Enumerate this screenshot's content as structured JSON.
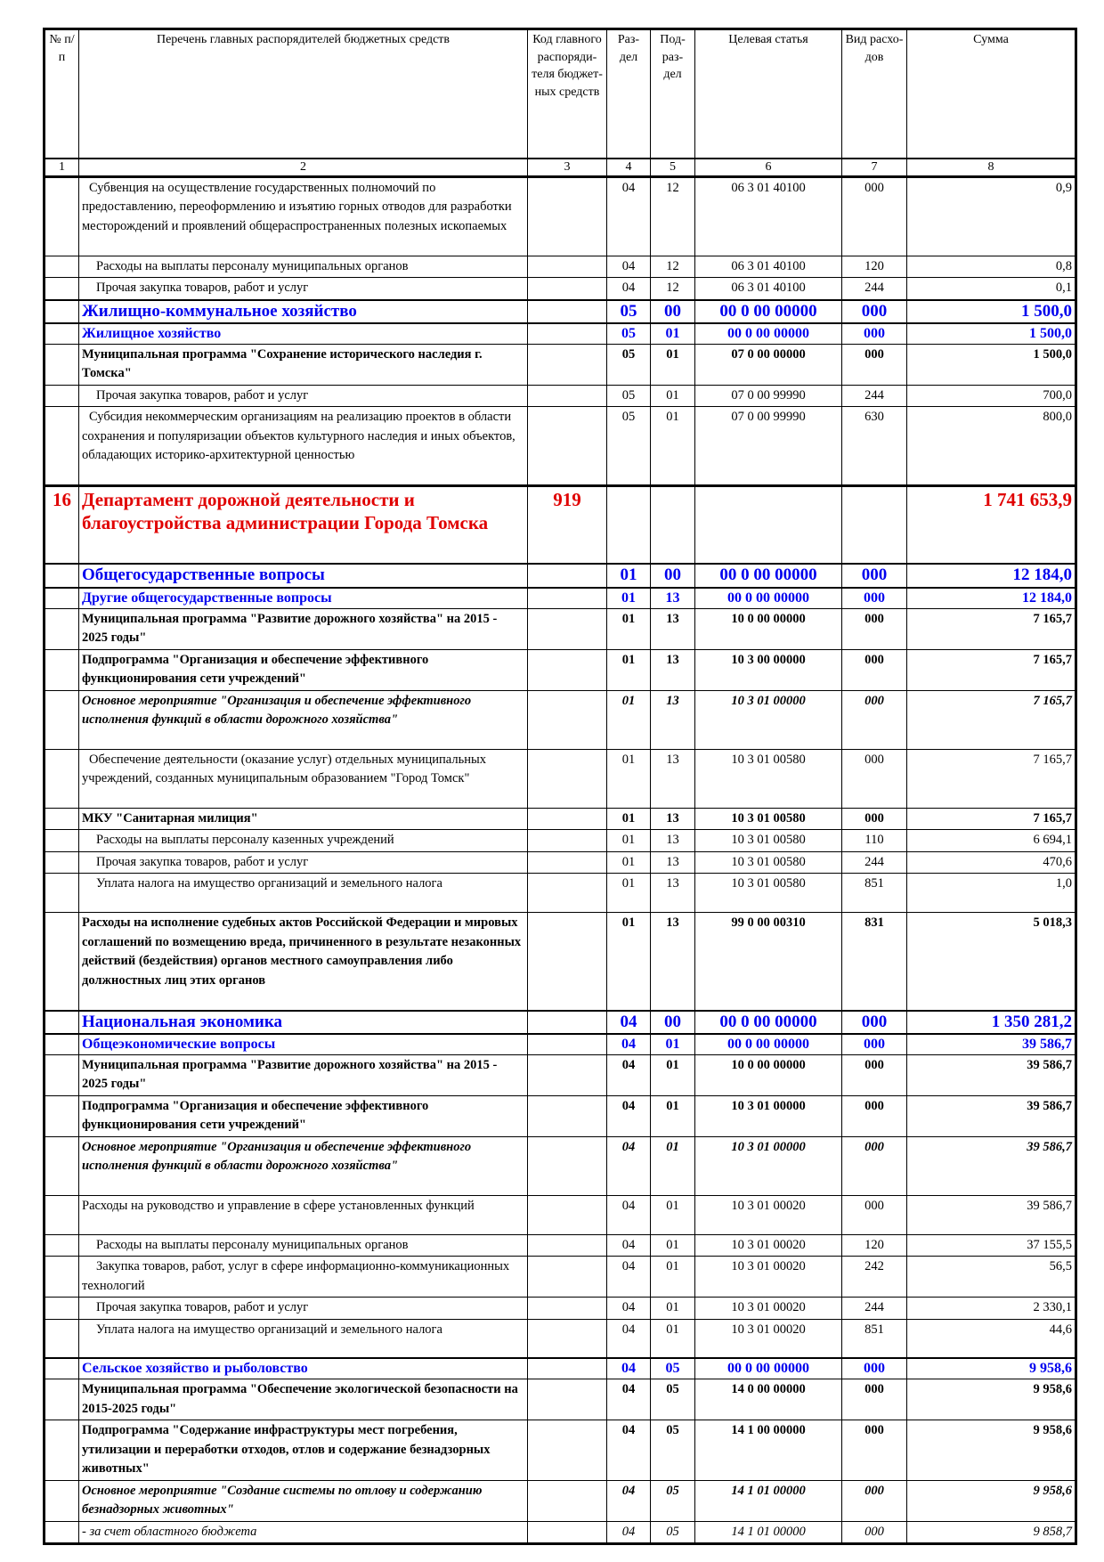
{
  "header": {
    "cols": [
      "№ п/п",
      "Перечень главных распорядителей бюджетных средств",
      "Код главного распоряди-теля бюджет-ных средств",
      "Раз-дел",
      "Под-раз-дел",
      "Целевая статья",
      "Вид расхо-дов",
      "Сумма"
    ],
    "nums": [
      "1",
      "2",
      "3",
      "4",
      "5",
      "6",
      "7",
      "8"
    ]
  },
  "colors": {
    "section": "#0000ee",
    "department": "#e00000",
    "text": "#000000"
  },
  "rows": [
    {
      "style": "normal",
      "h": 89,
      "no": "",
      "name": "Субвенция на осуществление государственных полномочий по предоставлению, переоформлению и изъятию горных отводов для разработки месторождений и проявлений общераспространенных полезных ископаемых",
      "code": "",
      "razdel": "04",
      "podrazdel": "12",
      "statya": "06 3 01 40100",
      "vid": "000",
      "summa": "0,9"
    },
    {
      "style": "sub",
      "h": 21,
      "no": "",
      "name": "Расходы на выплаты персоналу муниципальных органов",
      "code": "",
      "razdel": "04",
      "podrazdel": "12",
      "statya": "06 3 01 40100",
      "vid": "120",
      "summa": "0,8"
    },
    {
      "style": "sub",
      "h": 22,
      "no": "",
      "name": "Прочая закупка товаров, работ и услуг",
      "code": "",
      "razdel": "04",
      "podrazdel": "12",
      "statya": "06 3 01 40100",
      "vid": "244",
      "summa": "0,1"
    },
    {
      "style": "sec",
      "h": 26,
      "no": "",
      "name": "Жилищно-коммунальное хозяйство",
      "code": "",
      "razdel": "05",
      "podrazdel": "00",
      "statya": "00 0 00 00000",
      "vid": "000",
      "summa": "1 500,0"
    },
    {
      "style": "subsec",
      "h": 23,
      "no": "",
      "name": "Жилищное хозяйство",
      "code": "",
      "razdel": "05",
      "podrazdel": "01",
      "statya": "00 0 00 00000",
      "vid": "000",
      "summa": "1 500,0"
    },
    {
      "style": "bold",
      "h": 44,
      "no": "",
      "name": "Муниципальная программа \"Сохранение исторического наследия г. Томска\"",
      "code": "",
      "razdel": "05",
      "podrazdel": "01",
      "statya": "07 0 00 00000",
      "vid": "000",
      "summa": "1 500,0"
    },
    {
      "style": "sub",
      "h": 22,
      "no": "",
      "name": "Прочая закупка товаров, работ и услуг",
      "code": "",
      "razdel": "05",
      "podrazdel": "01",
      "statya": "07 0 00 99990",
      "vid": "244",
      "summa": "700,0"
    },
    {
      "style": "normal",
      "h": 89,
      "no": "",
      "name": "Субсидия некоммерческим организациям на реализацию проектов в области сохранения и популяризации объектов культурного наследия и иных объектов, обладающих историко-архитектурной ценностью",
      "code": "",
      "razdel": "05",
      "podrazdel": "01",
      "statya": "07 0 00 99990",
      "vid": "630",
      "summa": "800,0"
    },
    {
      "style": "dept",
      "h": 87,
      "no": "16",
      "name": "Департамент дорожной деятельности и благоустройства администрации Города Томска",
      "code": "919",
      "razdel": "",
      "podrazdel": "",
      "statya": "",
      "vid": "",
      "summa": "1 741 653,9"
    },
    {
      "style": "sec",
      "h": 27,
      "no": "",
      "name": "Общегосударственные вопросы",
      "code": "",
      "razdel": "01",
      "podrazdel": "00",
      "statya": "00 0 00 00000",
      "vid": "000",
      "summa": "12 184,0"
    },
    {
      "style": "subsec",
      "h": 23,
      "no": "",
      "name": "Другие общегосударственные вопросы",
      "code": "",
      "razdel": "01",
      "podrazdel": "13",
      "statya": "00 0 00 00000",
      "vid": "000",
      "summa": "12 184,0"
    },
    {
      "style": "bold",
      "h": 44,
      "no": "",
      "name": "Муниципальная программа \"Развитие дорожного хозяйства\" на 2015 - 2025 годы\"",
      "code": "",
      "razdel": "01",
      "podrazdel": "13",
      "statya": "10 0 00 00000",
      "vid": "000",
      "summa": "7 165,7"
    },
    {
      "style": "bold",
      "h": 44,
      "no": "",
      "name": "Подпрограмма \"Организация и обеспечение эффективного функционирования сети учреждений\"",
      "code": "",
      "razdel": "01",
      "podrazdel": "13",
      "statya": "10 3 00 00000",
      "vid": "000",
      "summa": "7 165,7"
    },
    {
      "style": "ital",
      "h": 66,
      "no": "",
      "name": " Основное мероприятие \"Организация и обеспечение эффективного исполнения функций в области дорожного хозяйства\"",
      "code": "",
      "razdel": "01",
      "podrazdel": "13",
      "statya": "10 3 01 00000",
      "vid": "000",
      "summa": "7 165,7"
    },
    {
      "style": "normal",
      "h": 66,
      "no": "",
      "name": "Обеспечение деятельности (оказание услуг) отдельных муниципальных учреждений, созданных муниципальным образованием \"Город Томск\"",
      "code": "",
      "razdel": "01",
      "podrazdel": "13",
      "statya": "10 3 01 00580",
      "vid": "000",
      "summa": "7 165,7"
    },
    {
      "style": "bold",
      "h": 22,
      "no": "",
      "name": "МКУ \"Санитарная милиция\"",
      "code": "",
      "razdel": "01",
      "podrazdel": "13",
      "statya": "10 3 01 00580",
      "vid": "000",
      "summa": "7 165,7"
    },
    {
      "style": "sub",
      "h": 22,
      "no": "",
      "name": "Расходы на выплаты персоналу казенных учреждений",
      "code": "",
      "razdel": "01",
      "podrazdel": "13",
      "statya": "10 3 01 00580",
      "vid": "110",
      "summa": "6 694,1"
    },
    {
      "style": "sub",
      "h": 22,
      "no": "",
      "name": "Прочая закупка товаров, работ и услуг",
      "code": "",
      "razdel": "01",
      "podrazdel": "13",
      "statya": "10 3 01 00580",
      "vid": "244",
      "summa": "470,6"
    },
    {
      "style": "sub",
      "h": 44,
      "no": "",
      "name": "Уплата налога на имущество организаций и земельного налога",
      "code": "",
      "razdel": "01",
      "podrazdel": "13",
      "statya": "10 3 01 00580",
      "vid": "851",
      "summa": "1,0"
    },
    {
      "style": "bold",
      "h": 110,
      "no": "",
      "name": "Расходы на исполнение судебных актов Российской Федерации и мировых соглашений по возмещению вреда, причиненного в результате незаконных действий (бездействия) органов местного самоуправления либо должностных лиц этих органов",
      "code": "",
      "razdel": "01",
      "podrazdel": "13",
      "statya": "99 0 00 00310",
      "vid": "831",
      "summa": "5 018,3"
    },
    {
      "style": "sec",
      "h": 26,
      "no": "",
      "name": "Национальная экономика",
      "code": "",
      "razdel": "04",
      "podrazdel": "00",
      "statya": "00 0 00 00000",
      "vid": "000",
      "summa": "1 350 281,2"
    },
    {
      "style": "subsec",
      "h": 23,
      "no": "",
      "name": "Общеэкономические вопросы",
      "code": "",
      "razdel": "04",
      "podrazdel": "01",
      "statya": "00 0 00 00000",
      "vid": "000",
      "summa": "39 586,7"
    },
    {
      "style": "bold",
      "h": 44,
      "no": "",
      "name": "Муниципальная программа \"Развитие дорожного хозяйства\" на 2015 - 2025 годы\"",
      "code": "",
      "razdel": "04",
      "podrazdel": "01",
      "statya": "10 0 00 00000",
      "vid": "000",
      "summa": "39 586,7"
    },
    {
      "style": "bold",
      "h": 44,
      "no": "",
      "name": "Подпрограмма \"Организация и обеспечение эффективного функционирования сети учреждений\"",
      "code": "",
      "razdel": "04",
      "podrazdel": "01",
      "statya": "10 3 01 00000",
      "vid": "000",
      "summa": "39 586,7"
    },
    {
      "style": "ital",
      "h": 66,
      "no": "",
      "name": "Основное мероприятие \"Организация и обеспечение эффективного исполнения функций в области дорожного хозяйства\"",
      "code": "",
      "razdel": "04",
      "podrazdel": "01",
      "statya": "10 3 01 00000",
      "vid": "000",
      "summa": "39 586,7"
    },
    {
      "style": "plain",
      "h": 44,
      "no": "",
      "name": "Расходы на руководство и управление в сфере установленных функций",
      "code": "",
      "razdel": "04",
      "podrazdel": "01",
      "statya": "10 3 01 00020",
      "vid": "000",
      "summa": "39 586,7"
    },
    {
      "style": "sub",
      "h": 22,
      "no": "",
      "name": "Расходы на выплаты персоналу муниципальных органов",
      "code": "",
      "razdel": "04",
      "podrazdel": "01",
      "statya": "10 3 01 00020",
      "vid": "120",
      "summa": "37 155,5"
    },
    {
      "style": "sub",
      "h": 44,
      "no": "",
      "name": "Закупка товаров, работ, услуг в сфере информационно-коммуникационных технологий",
      "code": "",
      "razdel": "04",
      "podrazdel": "01",
      "statya": "10 3 01 00020",
      "vid": "242",
      "summa": "56,5"
    },
    {
      "style": "sub",
      "h": 22,
      "no": "",
      "name": "Прочая закупка товаров, работ и услуг",
      "code": "",
      "razdel": "04",
      "podrazdel": "01",
      "statya": "10 3 01 00020",
      "vid": "244",
      "summa": "2 330,1"
    },
    {
      "style": "sub",
      "h": 44,
      "no": "",
      "name": "Уплата налога на имущество организаций и земельного налога",
      "code": "",
      "razdel": "04",
      "podrazdel": "01",
      "statya": "10 3 01 00020",
      "vid": "851",
      "summa": "44,6"
    },
    {
      "style": "subsec",
      "h": 23,
      "no": "",
      "name": "Сельское хозяйство и рыболовство",
      "code": "",
      "razdel": "04",
      "podrazdel": "05",
      "statya": "00 0 00 00000",
      "vid": "000",
      "summa": "9 958,6"
    },
    {
      "style": "bold",
      "h": 44,
      "no": "",
      "name": "Муниципальная программа \"Обеспечение экологической безопасности на 2015-2025 годы\"",
      "code": "",
      "razdel": "04",
      "podrazdel": "05",
      "statya": "14 0 00 00000",
      "vid": "000",
      "summa": "9 958,6"
    },
    {
      "style": "bold",
      "h": 66,
      "no": "",
      "name": "Подпрограмма \"Содержание инфраструктуры мест погребения, утилизации и переработки отходов, отлов и содержание безнадзорных животных\"",
      "code": "",
      "razdel": "04",
      "podrazdel": "05",
      "statya": "14 1 00 00000",
      "vid": "000",
      "summa": "9 958,6"
    },
    {
      "style": "ital",
      "h": 44,
      "no": "",
      "name": " Основное мероприятие \"Создание системы по отлову и содержанию безнадзорных животных\"",
      "code": "",
      "razdel": "04",
      "podrazdel": "05",
      "statya": "14 1 01 00000",
      "vid": "000",
      "summa": "9 958,6"
    },
    {
      "style": "italn",
      "h": 22,
      "no": "",
      "name": " - за счет областного бюджета",
      "code": "",
      "razdel": "04",
      "podrazdel": "05",
      "statya": "14 1 01 00000",
      "vid": "000",
      "summa": "9 858,7"
    }
  ]
}
